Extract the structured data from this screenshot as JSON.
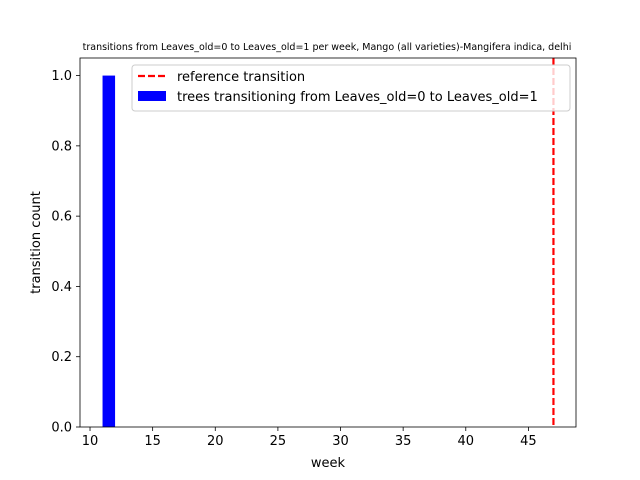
{
  "chart_data": {
    "type": "bar",
    "title": "transitions from Leaves_old=0 to Leaves_old=1 per week, Mango (all varieties)-Mangifera indica, delhi",
    "xlabel": "week",
    "ylabel": "transition count",
    "xlim": [
      9.2,
      48.8
    ],
    "ylim": [
      0,
      1.05
    ],
    "xticks": [
      10,
      15,
      20,
      25,
      30,
      35,
      40,
      45
    ],
    "yticks": [
      0.0,
      0.2,
      0.4,
      0.6,
      0.8,
      1.0
    ],
    "ytick_labels": [
      "0.0",
      "0.2",
      "0.4",
      "0.6",
      "0.8",
      "1.0"
    ],
    "series": [
      {
        "name": "trees transitioning from Leaves_old=0 to Leaves_old=1",
        "color": "#0000ff",
        "bars": [
          {
            "x_start": 11,
            "x_end": 12,
            "value": 1
          }
        ]
      }
    ],
    "reference_lines": [
      {
        "name": "reference transition",
        "x": 47,
        "color": "#ff0000",
        "style": "dashed"
      }
    ],
    "legend_position": "top-right",
    "grid": false
  }
}
